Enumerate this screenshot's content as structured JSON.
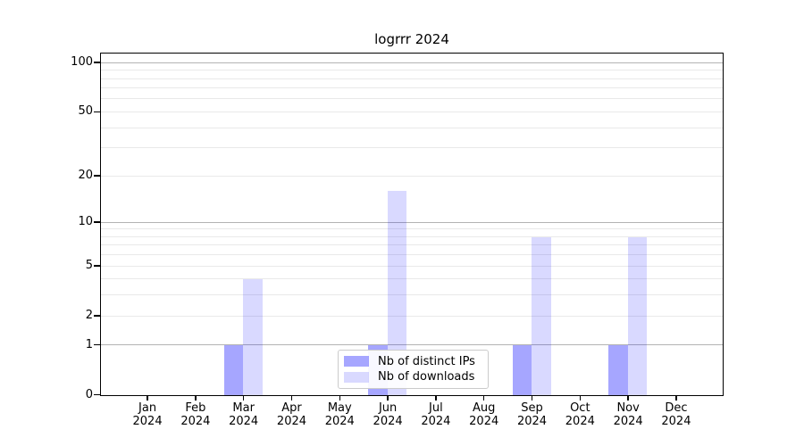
{
  "chart_data": {
    "type": "bar",
    "title": "logrrr 2024",
    "categories": [
      "Jan",
      "Feb",
      "Mar",
      "Apr",
      "May",
      "Jun",
      "Jul",
      "Aug",
      "Sep",
      "Oct",
      "Nov",
      "Dec"
    ],
    "x_tick_year": "2024",
    "series": [
      {
        "name": "Nb of distinct IPs",
        "color": "rgba(0,0,255,0.35)",
        "values": [
          0,
          0,
          1,
          0,
          0,
          1,
          0,
          0,
          1,
          0,
          1,
          0
        ]
      },
      {
        "name": "Nb of downloads",
        "color": "rgba(0,0,255,0.15)",
        "values": [
          0,
          0,
          4,
          0,
          0,
          16,
          0,
          0,
          8,
          0,
          8,
          0
        ]
      }
    ],
    "yscale": "log1p",
    "ylim": [
      0,
      113
    ],
    "xlim": [
      -0.96,
      11.96
    ],
    "bar_width_units": 0.4,
    "ytick_values": [
      100,
      50,
      20,
      10,
      5,
      2,
      1,
      0
    ],
    "ytick_labels": [
      "100",
      "50",
      "20",
      "10",
      "5",
      "2",
      "1",
      "0"
    ],
    "major_gridlines": [
      1,
      10,
      100
    ],
    "minor_gridlines": [
      2,
      3,
      4,
      5,
      6,
      7,
      8,
      9,
      20,
      30,
      40,
      50,
      60,
      70,
      80,
      90
    ],
    "grid": true,
    "legend_position": "lower center, inside plot",
    "colors": {
      "background": "#ffffff",
      "spine": "#000000",
      "text": "#000000",
      "grid_major": "#b3b3b3",
      "grid_minor": "#e9e9e9",
      "legend_border": "#cbcbcb"
    }
  }
}
